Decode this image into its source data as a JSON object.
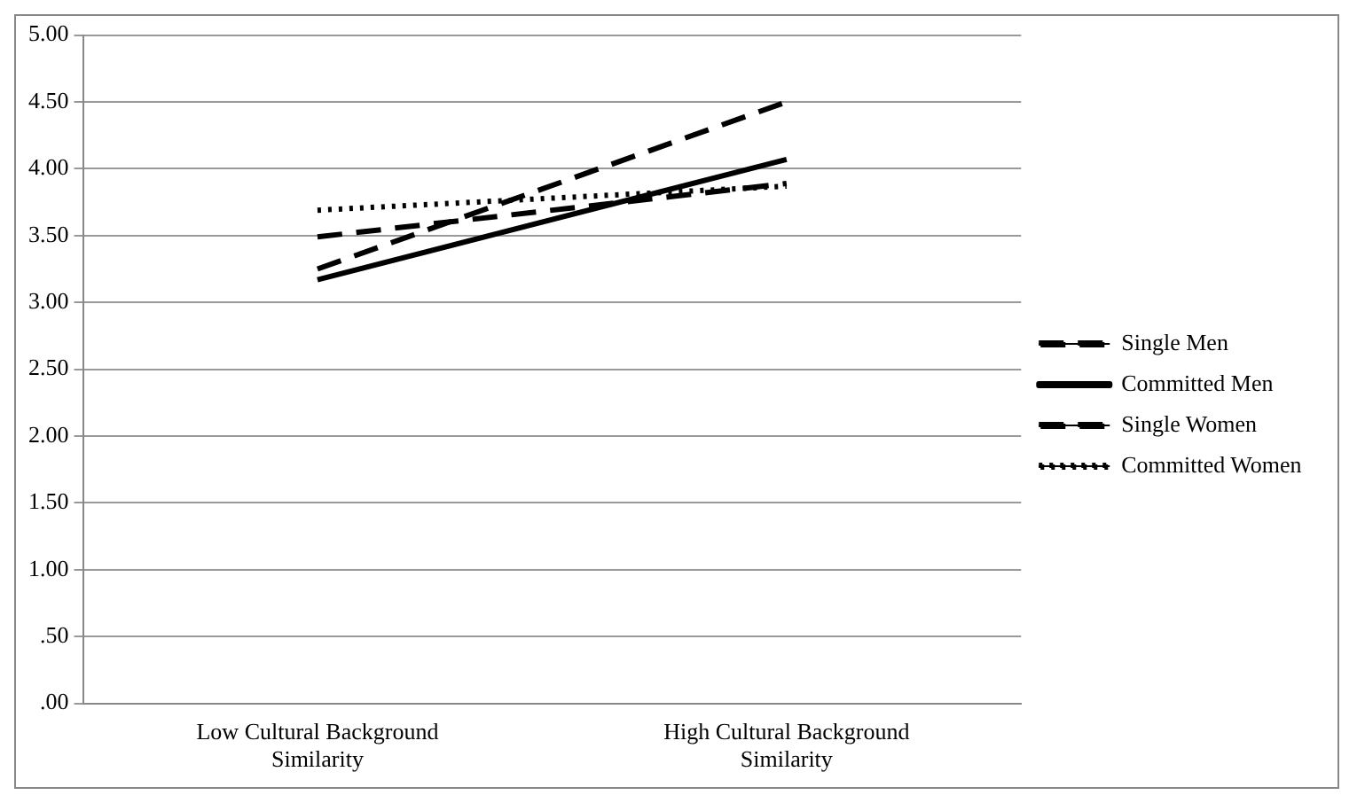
{
  "chart_data": {
    "type": "line",
    "categories": [
      "Low Cultural Background Similarity",
      "High Cultural Background Similarity"
    ],
    "series": [
      {
        "name": "Single Men",
        "color": "#000000",
        "values": [
          3.49,
          3.89
        ],
        "line_style": "dashed"
      },
      {
        "name": "Committed Men",
        "color": "#000000",
        "values": [
          3.17,
          4.07
        ],
        "line_style": "solid"
      },
      {
        "name": "Single Women",
        "color": "#000000",
        "values": [
          3.25,
          4.5
        ],
        "line_style": "dashed"
      },
      {
        "name": "Committed Women",
        "color": "#000000",
        "values": [
          3.69,
          3.87
        ],
        "line_style": "dotted"
      }
    ],
    "ylim": [
      0,
      5
    ],
    "yticks": [
      {
        "value": 0,
        "label": ".00"
      },
      {
        "value": 0.5,
        "label": ".50"
      },
      {
        "value": 1,
        "label": "1.00"
      },
      {
        "value": 1.5,
        "label": "1.50"
      },
      {
        "value": 2,
        "label": "2.00"
      },
      {
        "value": 2.5,
        "label": "2.50"
      },
      {
        "value": 3,
        "label": "3.00"
      },
      {
        "value": 3.5,
        "label": "3.50"
      },
      {
        "value": 4,
        "label": "4.00"
      },
      {
        "value": 4.5,
        "label": "4.50"
      },
      {
        "value": 5,
        "label": "5.00"
      }
    ],
    "grid": "y",
    "legend": "right",
    "marker": "none"
  }
}
